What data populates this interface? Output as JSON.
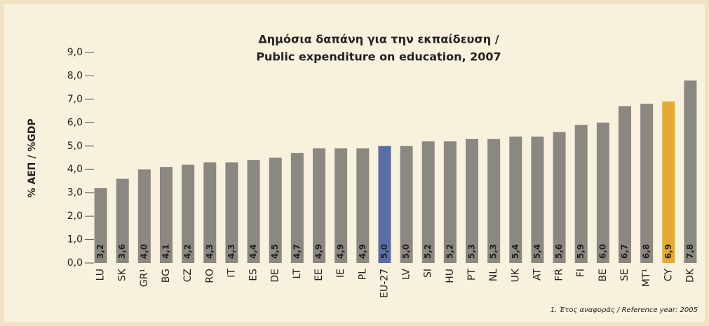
{
  "chart_data": {
    "type": "bar",
    "title": [
      "Δημόσια δαπάνη για την εκπαίδευση /",
      "Public expenditure on education, 2007"
    ],
    "ylabel": "% ΑΕΠ / %GDP",
    "footnote": "1. Έτος αναφοράς / Reference year: 2005",
    "categories": [
      "LU",
      "SK",
      "GR¹",
      "BG",
      "CZ",
      "RO",
      "IT",
      "ES",
      "DE",
      "LT",
      "EE",
      "IE",
      "PL",
      "EU-27",
      "LV",
      "SI",
      "HU",
      "PT",
      "NL",
      "UK",
      "AT",
      "FR",
      "FI",
      "BE",
      "SE",
      "MT¹",
      "CY",
      "DK"
    ],
    "values": [
      3.2,
      3.6,
      4.0,
      4.1,
      4.2,
      4.3,
      4.3,
      4.4,
      4.5,
      4.7,
      4.9,
      4.9,
      4.9,
      5.0,
      5.0,
      5.2,
      5.2,
      5.3,
      5.3,
      5.4,
      5.4,
      5.6,
      5.9,
      6.0,
      6.7,
      6.8,
      6.9,
      7.8
    ],
    "value_labels": [
      "3,2",
      "3,6",
      "4,0",
      "4,1",
      "4,2",
      "4,3",
      "4,3",
      "4,4",
      "4,5",
      "4,7",
      "4,9",
      "4,9",
      "4,9",
      "5,0",
      "5,0",
      "5,2",
      "5,2",
      "5,3",
      "5,3",
      "5,4",
      "5,4",
      "5,6",
      "5,9",
      "6,0",
      "6,7",
      "6,8",
      "6,9",
      "7,8"
    ],
    "colors": [
      "#8b8781",
      "#8b8781",
      "#8b8781",
      "#8b8781",
      "#8b8781",
      "#8b8781",
      "#8b8781",
      "#8b8781",
      "#8b8781",
      "#8b8781",
      "#8b8781",
      "#8b8781",
      "#8b8781",
      "#5a6ea6",
      "#8b8781",
      "#8b8781",
      "#8b8781",
      "#8b8781",
      "#8b8781",
      "#8b8781",
      "#8b8781",
      "#8b8781",
      "#8b8781",
      "#8b8781",
      "#8b8781",
      "#8b8781",
      "#e6ab2e",
      "#8b8781"
    ],
    "ylim": [
      0,
      9
    ],
    "yticks": [
      {
        "value": 0,
        "label": "0,0"
      },
      {
        "value": 1,
        "label": "1,0"
      },
      {
        "value": 2,
        "label": "2,0"
      },
      {
        "value": 3,
        "label": "3,0"
      },
      {
        "value": 4,
        "label": "4,0"
      },
      {
        "value": 5,
        "label": "5,0"
      },
      {
        "value": 6,
        "label": "6,0"
      },
      {
        "value": 7,
        "label": "7,0"
      },
      {
        "value": 8,
        "label": "8,0"
      },
      {
        "value": 9,
        "label": "9,0"
      }
    ]
  }
}
